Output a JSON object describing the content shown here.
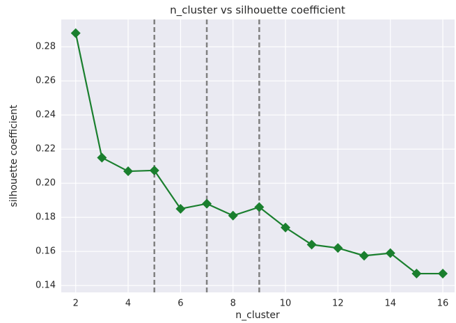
{
  "chart_data": {
    "type": "line",
    "title": "n_cluster vs silhouette coefficient",
    "x_label": "n_cluster",
    "y_label": "silhouette coefficient",
    "x": [
      2,
      3,
      4,
      5,
      6,
      7,
      8,
      9,
      10,
      11,
      12,
      13,
      14,
      15,
      16
    ],
    "series": [
      {
        "color": "#1a7f2e",
        "values": [
          0.288,
          0.215,
          0.207,
          0.2075,
          0.185,
          0.188,
          0.181,
          0.186,
          0.174,
          0.164,
          0.162,
          0.1575,
          0.159,
          0.147,
          0.147
        ]
      }
    ],
    "vlines": [
      5,
      7,
      9
    ],
    "vline_color": "#808080",
    "xlim": [
      1.45,
      16.45
    ],
    "ylim": [
      0.136,
      0.296
    ],
    "xticks": [
      2,
      4,
      6,
      8,
      10,
      12,
      14,
      16
    ],
    "yticks": [
      0.14,
      0.16,
      0.18,
      {
        "value": 0.2,
        "label": "0.20"
      },
      0.22,
      0.24,
      0.26,
      0.28
    ],
    "grid": true
  }
}
